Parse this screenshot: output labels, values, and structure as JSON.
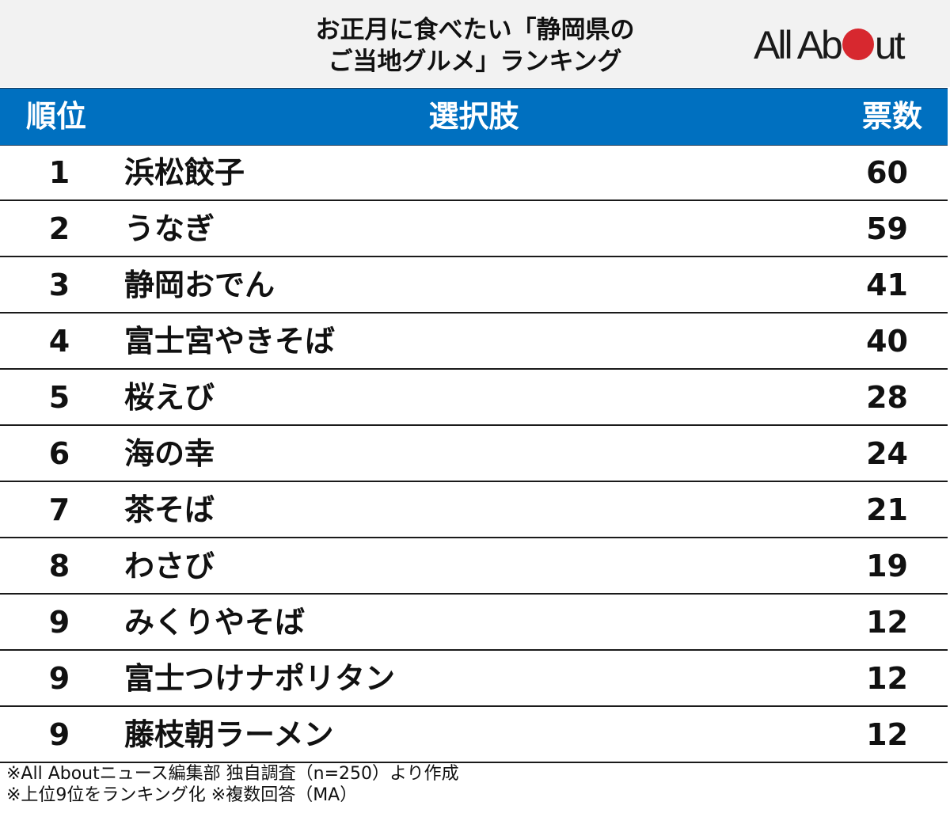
{
  "header": {
    "title_line1": "お正月に食べたい「静岡県の",
    "title_line2": "ご当地グルメ」ランキング",
    "logo": {
      "text_before": "All Ab",
      "text_after": "ut",
      "dot_color": "#d7282f"
    }
  },
  "table": {
    "columns": {
      "rank": "順位",
      "choice": "選択肢",
      "votes": "票数"
    },
    "header_color": "#0070c0",
    "rows": [
      {
        "rank": "1",
        "name": "浜松餃子",
        "votes": "60"
      },
      {
        "rank": "2",
        "name": "うなぎ",
        "votes": "59"
      },
      {
        "rank": "3",
        "name": "静岡おでん",
        "votes": "41"
      },
      {
        "rank": "4",
        "name": "富士宮やきそば",
        "votes": "40"
      },
      {
        "rank": "5",
        "name": "桜えび",
        "votes": "28"
      },
      {
        "rank": "6",
        "name": "海の幸",
        "votes": "24"
      },
      {
        "rank": "7",
        "name": "茶そば",
        "votes": "21"
      },
      {
        "rank": "8",
        "name": "わさび",
        "votes": "19"
      },
      {
        "rank": "9",
        "name": "みくりやそば",
        "votes": "12"
      },
      {
        "rank": "9",
        "name": "富士つけナポリタン",
        "votes": "12"
      },
      {
        "rank": "9",
        "name": "藤枝朝ラーメン",
        "votes": "12"
      }
    ]
  },
  "notes": {
    "line1": "※All Aboutニュース編集部 独自調査（n=250）より作成",
    "line2": "※上位9位をランキング化 ※複数回答（MA）"
  },
  "chart_data": {
    "type": "table",
    "title": "お正月に食べたい「静岡県のご当地グルメ」ランキング",
    "columns": [
      "順位",
      "選択肢",
      "票数"
    ],
    "categories": [
      "浜松餃子",
      "うなぎ",
      "静岡おでん",
      "富士宮やきそば",
      "桜えび",
      "海の幸",
      "茶そば",
      "わさび",
      "みくりやそば",
      "富士つけナポリタン",
      "藤枝朝ラーメン"
    ],
    "ranks": [
      1,
      2,
      3,
      4,
      5,
      6,
      7,
      8,
      9,
      9,
      9
    ],
    "values": [
      60,
      59,
      41,
      40,
      28,
      24,
      21,
      19,
      12,
      12,
      12
    ],
    "annotations": [
      "※All Aboutニュース編集部 独自調査（n=250）より作成",
      "※上位9位をランキング化 ※複数回答（MA）"
    ]
  }
}
